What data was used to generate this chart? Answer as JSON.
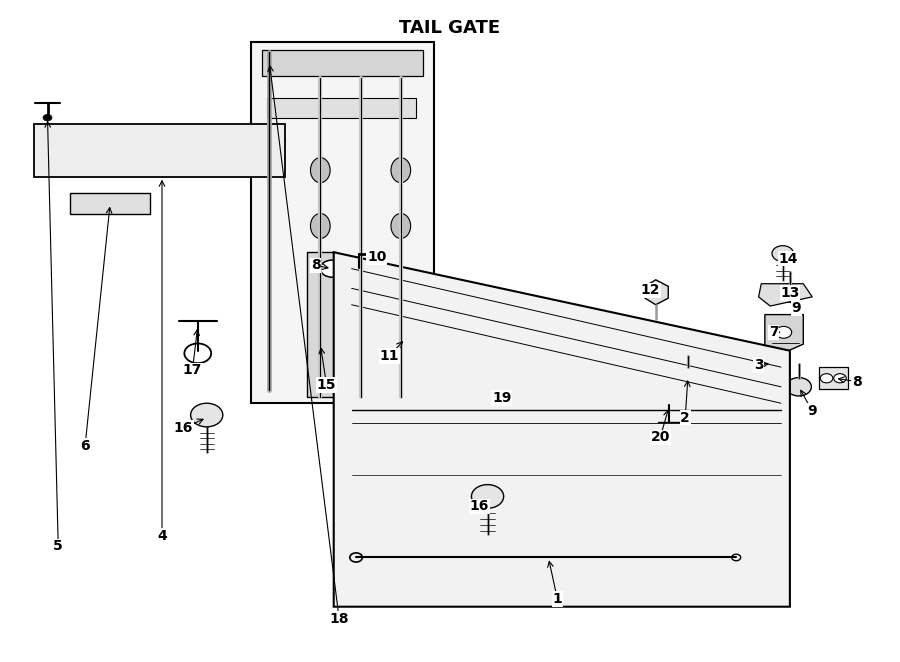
{
  "title": "TAIL GATE",
  "bg_color": "#ffffff",
  "line_color": "#000000",
  "text_color": "#000000",
  "fig_width": 9.0,
  "fig_height": 6.62
}
